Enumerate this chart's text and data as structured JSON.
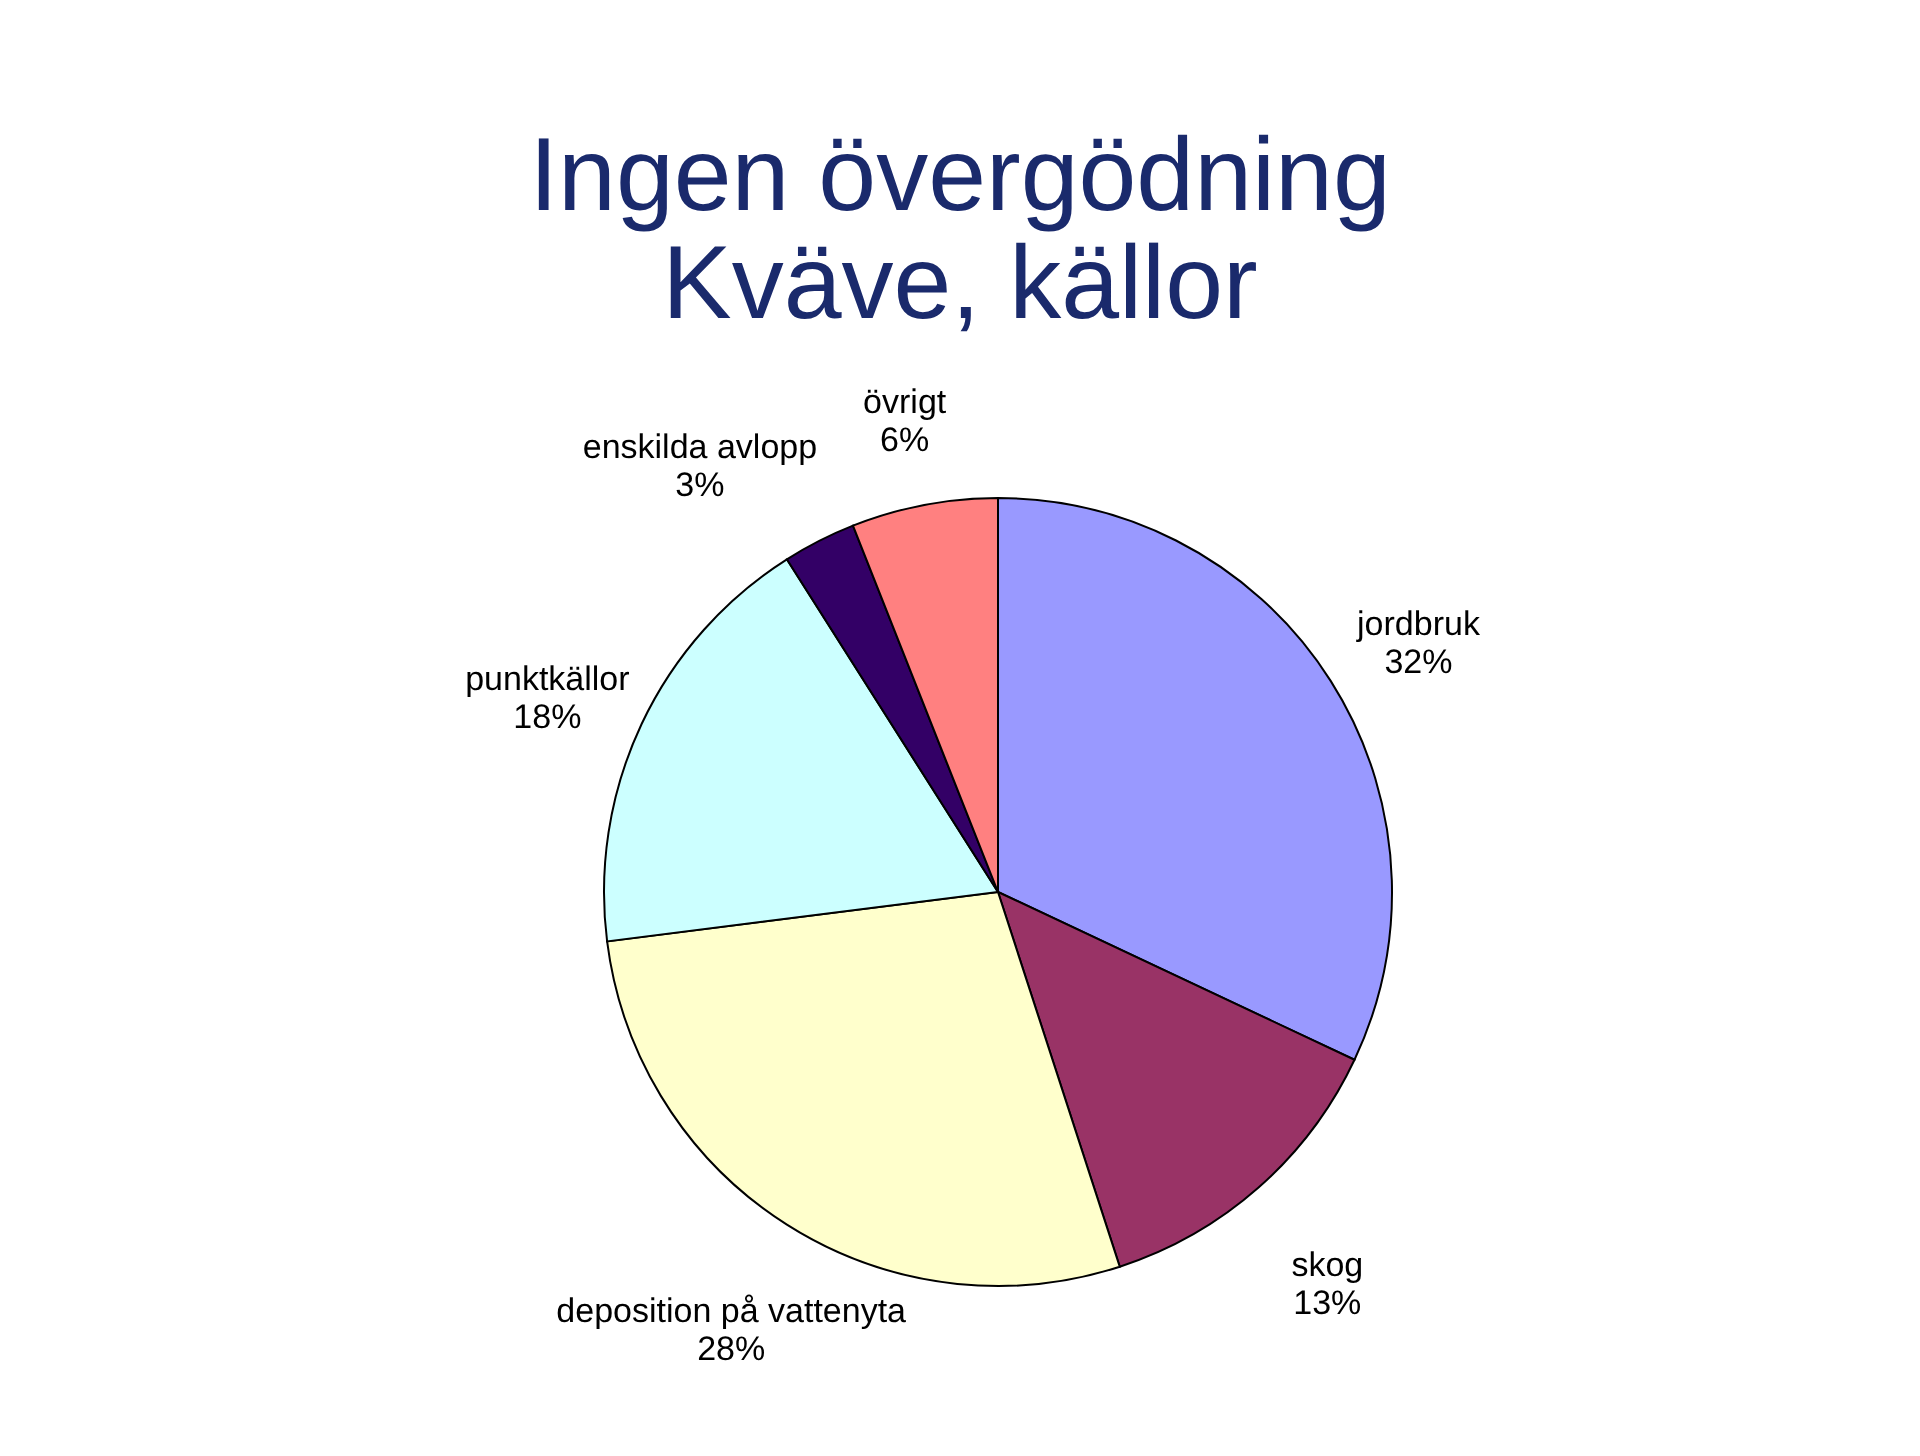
{
  "chart_data": {
    "type": "pie",
    "title": "Ingen övergödning",
    "subtitle": "Kväve, källor",
    "categories": [
      "jordbruk",
      "skog",
      "deposition på vattenyta",
      "punktkällor",
      "enskilda avlopp",
      "övrigt"
    ],
    "values": [
      32,
      13,
      28,
      18,
      3,
      6
    ],
    "value_labels": [
      "32%",
      "13%",
      "28%",
      "18%",
      "3%",
      "6%"
    ],
    "colors": [
      "#9999ff",
      "#993366",
      "#ffffcc",
      "#ccffff",
      "#330066",
      "#ff8080"
    ],
    "legend": false
  }
}
